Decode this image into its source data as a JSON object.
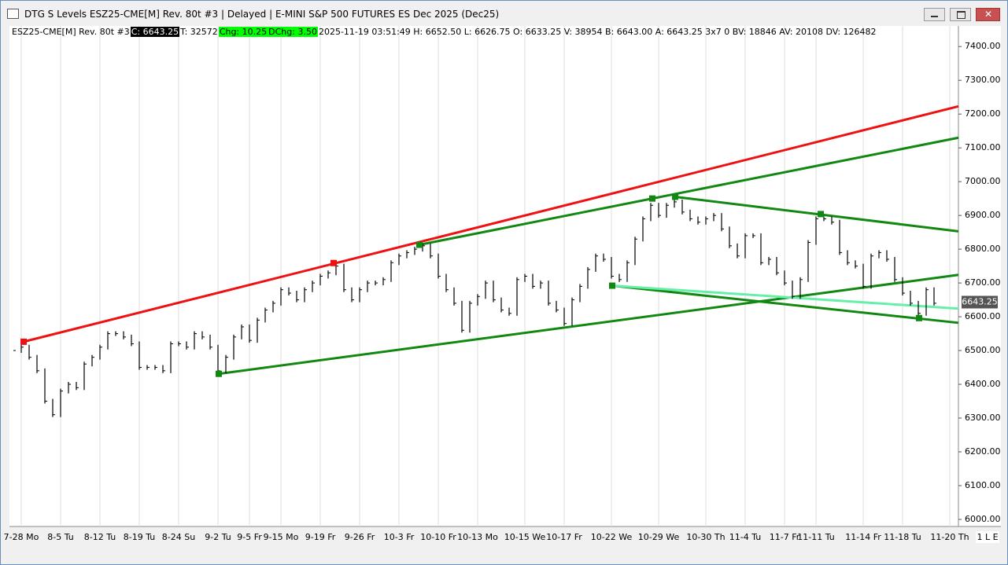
{
  "window_title": "DTG S Levels ESZ25-CME[M]  Rev. 80t #3 | Delayed | E-MINI S&P 500 FUTURES ES Dec 2025 (Dec25)",
  "info_bar": [
    {
      "text": "ESZ25-CME[M]  Rev. 80t #3"
    },
    {
      "text": "C: 6643.25",
      "style": "dark"
    },
    {
      "text": "T: 32572"
    },
    {
      "text": "Chg: 10.25",
      "style": "green"
    },
    {
      "text": "DChg: 3.50",
      "style": "green"
    },
    {
      "text": "2025-11-19 03:51:49 H: 6652.50 L: 6626.75 O: 6633.25 V: 38954 B: 6643.00 A: 6643.25 3x7 0 BV: 18846 AV: 20108 DV: 126482"
    }
  ],
  "status_label": "1 L E",
  "chart_data": {
    "type": "bar-chart-price",
    "color": "#000000",
    "categories": [
      null,
      "7-28 Mo",
      null,
      null,
      null,
      null,
      "8-5 Tu",
      null,
      null,
      null,
      null,
      "8-12 Tu",
      null,
      null,
      null,
      null,
      "8-19 Tu",
      null,
      null,
      null,
      null,
      "8-24 Su",
      null,
      null,
      null,
      null,
      "9-2 Tu",
      null,
      null,
      null,
      "9-5 Fr",
      null,
      null,
      null,
      "9-15 Mo",
      null,
      null,
      null,
      null,
      "9-19 Fr",
      null,
      null,
      null,
      null,
      "9-26 Fr",
      null,
      null,
      null,
      null,
      "10-3 Fr",
      null,
      null,
      null,
      null,
      "10-10 Fr",
      null,
      null,
      null,
      null,
      "10-13 Mo",
      null,
      null,
      null,
      null,
      null,
      "10-15 We",
      null,
      null,
      null,
      null,
      "10-17 Fr",
      null,
      null,
      null,
      null,
      null,
      "10-22 We",
      null,
      null,
      null,
      null,
      null,
      "10-29 We",
      null,
      null,
      null,
      null,
      null,
      "10-30 Th",
      null,
      null,
      null,
      null,
      "11-4 Tu",
      null,
      null,
      null,
      null,
      "11-7 Fr",
      null,
      null,
      null,
      "11-11 Tu",
      null,
      null,
      null,
      null,
      null,
      "11-14 Fr",
      null,
      null,
      null,
      null,
      "11-18 Tu",
      null,
      null,
      null,
      null,
      null,
      "11-20 Th"
    ],
    "values": [
      6500,
      6510,
      6480,
      6440,
      6350,
      6310,
      6380,
      6400,
      6390,
      6460,
      6480,
      6510,
      6550,
      6550,
      6540,
      6520,
      6450,
      6450,
      6450,
      6440,
      6520,
      6520,
      6510,
      6550,
      6540,
      6510,
      6440,
      6480,
      6540,
      6570,
      6530,
      6590,
      6620,
      6640,
      6680,
      6670,
      6650,
      6680,
      6700,
      6720,
      6730,
      6750,
      6680,
      6650,
      6680,
      6700,
      6700,
      6710,
      6760,
      6780,
      6790,
      6800,
      6810,
      6780,
      6720,
      6680,
      6640,
      6560,
      6640,
      6660,
      6700,
      6650,
      6620,
      6610,
      6710,
      6720,
      6690,
      6700,
      6640,
      6620,
      6580,
      6650,
      6690,
      6740,
      6780,
      6770,
      6720,
      6710,
      6760,
      6830,
      6890,
      6930,
      6900,
      6930,
      6940,
      6910,
      6890,
      6880,
      6890,
      6900,
      6860,
      6810,
      6780,
      6840,
      6840,
      6760,
      6770,
      6730,
      6700,
      6660,
      6710,
      6820,
      6890,
      6890,
      6880,
      6790,
      6760,
      6750,
      6690,
      6780,
      6790,
      6770,
      6710,
      6670,
      6640,
      6610,
      6680,
      6640,
      null,
      null
    ],
    "ylim": [
      5979,
      7461
    ],
    "yticks": [
      {
        "value": 6000,
        "label": "6000.00"
      },
      {
        "value": 6100,
        "label": "6100.00"
      },
      {
        "value": 6200,
        "label": "6200.00"
      },
      {
        "value": 6300,
        "label": "6300.00"
      },
      {
        "value": 6400,
        "label": "6400.00"
      },
      {
        "value": 6500,
        "label": "6500.00"
      },
      {
        "value": 6600,
        "label": "6600.00"
      },
      {
        "value": 6700,
        "label": "6700.00"
      },
      {
        "value": 6800,
        "label": "6800.00"
      },
      {
        "value": 6900,
        "label": "6900.00"
      },
      {
        "value": 7000,
        "label": "7000.00"
      },
      {
        "value": 7100,
        "label": "7100.00"
      },
      {
        "value": 7200,
        "label": "7200.00"
      },
      {
        "value": 7300,
        "label": "7300.00"
      },
      {
        "value": 7400,
        "label": "7400.00"
      }
    ],
    "last_price": {
      "value": 6643.25,
      "label": "6643.25"
    },
    "trendlines": [
      {
        "color": "#ee1111",
        "points": [
          [
            1.3,
            6526
          ],
          [
            120.1,
            7223
          ]
        ]
      },
      {
        "color": "#118811",
        "points": [
          [
            51.6,
            6813
          ],
          [
            120.1,
            7130
          ]
        ]
      },
      {
        "color": "#118811",
        "points": [
          [
            84.1,
            6955
          ],
          [
            120.1,
            6853
          ]
        ]
      },
      {
        "color": "#118811",
        "points": [
          [
            26.1,
            6431
          ],
          [
            120.1,
            6724
          ]
        ]
      },
      {
        "color": "#118811",
        "points": [
          [
            76.1,
            6692
          ],
          [
            120.1,
            6582
          ]
        ]
      },
      {
        "color": "#66eeaa",
        "points": [
          [
            76.1,
            6692
          ],
          [
            120.1,
            6624
          ]
        ]
      }
    ],
    "markers": [
      {
        "color": "#ee1111",
        "point": [
          1.3,
          6526
        ]
      },
      {
        "color": "#ee1111",
        "point": [
          40.7,
          6759
        ]
      },
      {
        "color": "#118811",
        "point": [
          51.6,
          6813
        ]
      },
      {
        "color": "#118811",
        "point": [
          81.2,
          6950
        ]
      },
      {
        "color": "#118811",
        "point": [
          84.1,
          6955
        ]
      },
      {
        "color": "#118811",
        "point": [
          102.6,
          6904
        ]
      },
      {
        "color": "#118811",
        "point": [
          26.1,
          6431
        ]
      },
      {
        "color": "#118811",
        "point": [
          76.1,
          6692
        ]
      },
      {
        "color": "#118811",
        "point": [
          115.1,
          6596
        ]
      }
    ],
    "grid": true
  }
}
